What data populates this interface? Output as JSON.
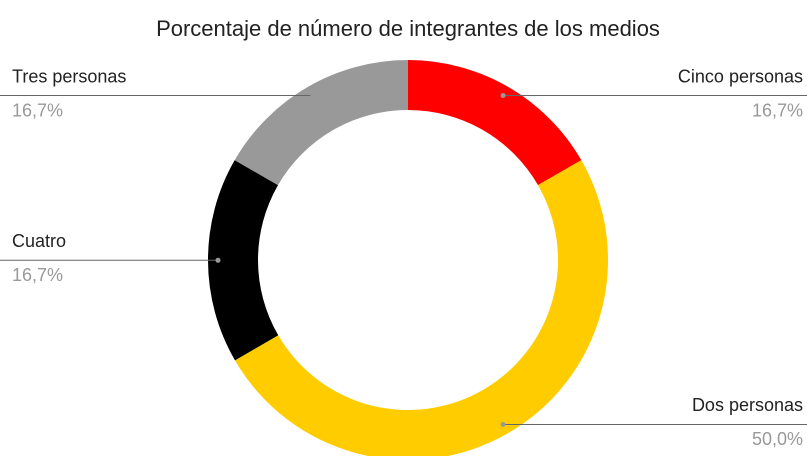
{
  "chart_data": {
    "type": "pie",
    "title": "Porcentaje de número de integrantes de los medios",
    "categories": [
      "Cinco personas",
      "Dos personas",
      "Cuatro",
      "Tres personas"
    ],
    "values": [
      16.7,
      50.0,
      16.7,
      16.7
    ],
    "value_labels": [
      "16,7%",
      "50,0%",
      "16,7%",
      "16,7%"
    ],
    "colors": [
      "#ff0000",
      "#ffcc00",
      "#000000",
      "#999999"
    ],
    "donut": true
  }
}
